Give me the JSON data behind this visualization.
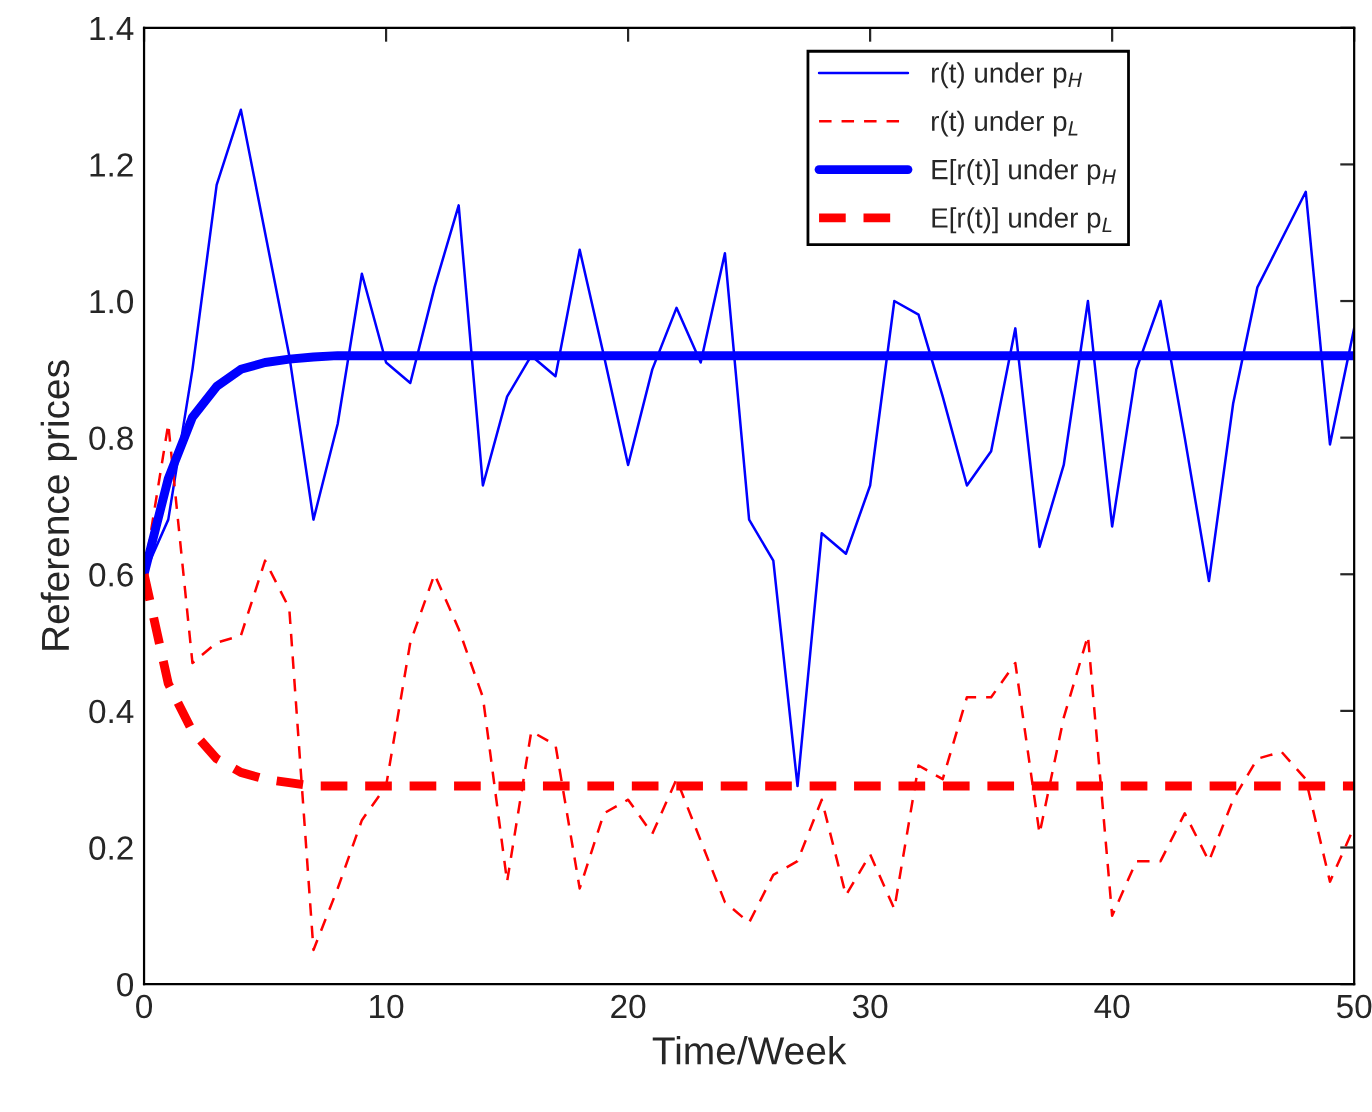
{
  "chart_data": {
    "type": "line",
    "xlabel": "Time/Week",
    "ylabel": "Reference prices",
    "x": [
      0,
      1,
      2,
      3,
      4,
      5,
      6,
      7,
      8,
      9,
      10,
      11,
      12,
      13,
      14,
      15,
      16,
      17,
      18,
      19,
      20,
      21,
      22,
      23,
      24,
      25,
      26,
      27,
      28,
      29,
      30,
      31,
      32,
      33,
      34,
      35,
      36,
      37,
      38,
      39,
      40,
      41,
      42,
      43,
      44,
      45,
      46,
      47,
      48,
      49,
      50
    ],
    "series": [
      {
        "name": "r(t) under p$_{H}$",
        "color": "#0000ff",
        "line_style": "solid",
        "values": [
          0.6,
          0.68,
          0.9,
          1.17,
          1.28,
          1.1,
          0.92,
          0.68,
          0.82,
          1.04,
          0.91,
          0.88,
          1.02,
          1.14,
          0.73,
          0.86,
          0.92,
          0.89,
          1.075,
          0.92,
          0.76,
          0.9,
          0.99,
          0.91,
          1.07,
          0.68,
          0.62,
          0.29,
          0.66,
          0.63,
          0.73,
          1.0,
          0.98,
          0.86,
          0.73,
          0.78,
          0.96,
          0.64,
          0.76,
          1.0,
          0.67,
          0.9,
          1.0,
          0.8,
          0.59,
          0.85,
          1.02,
          1.09,
          1.16,
          0.79,
          0.96
        ]
      },
      {
        "name": "r(t) under p$_{L}$",
        "color": "#ff0000",
        "line_style": "dashed",
        "values": [
          0.6,
          0.82,
          0.47,
          0.5,
          0.51,
          0.62,
          0.55,
          0.05,
          0.14,
          0.24,
          0.29,
          0.5,
          0.6,
          0.52,
          0.42,
          0.15,
          0.37,
          0.35,
          0.14,
          0.25,
          0.27,
          0.22,
          0.3,
          0.21,
          0.12,
          0.09,
          0.16,
          0.18,
          0.27,
          0.13,
          0.19,
          0.11,
          0.32,
          0.3,
          0.42,
          0.42,
          0.47,
          0.22,
          0.39,
          0.51,
          0.1,
          0.18,
          0.18,
          0.25,
          0.18,
          0.27,
          0.33,
          0.34,
          0.3,
          0.15,
          0.23
        ]
      },
      {
        "name": "E[r(t)] under p$_{H}$",
        "color": "#0000ff",
        "line_style": "solid",
        "values": [
          0.6,
          0.74,
          0.83,
          0.875,
          0.9,
          0.91,
          0.915,
          0.918,
          0.92,
          0.92,
          0.92,
          0.92,
          0.92,
          0.92,
          0.92,
          0.92,
          0.92,
          0.92,
          0.92,
          0.92,
          0.92,
          0.92,
          0.92,
          0.92,
          0.92,
          0.92,
          0.92,
          0.92,
          0.92,
          0.92,
          0.92,
          0.92,
          0.92,
          0.92,
          0.92,
          0.92,
          0.92,
          0.92,
          0.92,
          0.92,
          0.92,
          0.92,
          0.92,
          0.92,
          0.92,
          0.92,
          0.92,
          0.92,
          0.92,
          0.92,
          0.92
        ]
      },
      {
        "name": "E[r(t)] under p$_{L}$",
        "color": "#ff0000",
        "line_style": "dashed",
        "values": [
          0.6,
          0.44,
          0.37,
          0.33,
          0.31,
          0.3,
          0.295,
          0.29,
          0.29,
          0.29,
          0.29,
          0.29,
          0.29,
          0.29,
          0.29,
          0.29,
          0.29,
          0.29,
          0.29,
          0.29,
          0.29,
          0.29,
          0.29,
          0.29,
          0.29,
          0.29,
          0.29,
          0.29,
          0.29,
          0.29,
          0.29,
          0.29,
          0.29,
          0.29,
          0.29,
          0.29,
          0.29,
          0.29,
          0.29,
          0.29,
          0.29,
          0.29,
          0.29,
          0.29,
          0.29,
          0.29,
          0.29,
          0.29,
          0.29,
          0.29,
          0.29
        ]
      }
    ],
    "xlim": [
      0,
      50
    ],
    "xticks": [
      0,
      10,
      20,
      30,
      40,
      50
    ],
    "ylim": [
      0,
      1.4
    ],
    "yticks": [
      0,
      {
        "value": 0.2,
        "label": "0.2"
      },
      {
        "value": 0.4,
        "label": "0.4"
      },
      {
        "value": 0.6,
        "label": "0.6"
      },
      {
        "value": 0.8,
        "label": "0.8"
      },
      {
        "value": 1.0,
        "label": "1.0"
      },
      {
        "value": 1.2,
        "label": "1.2"
      },
      {
        "value": 1.4,
        "label": "1.4"
      }
    ],
    "grid": false,
    "legend": "top right",
    "marker": "none"
  }
}
